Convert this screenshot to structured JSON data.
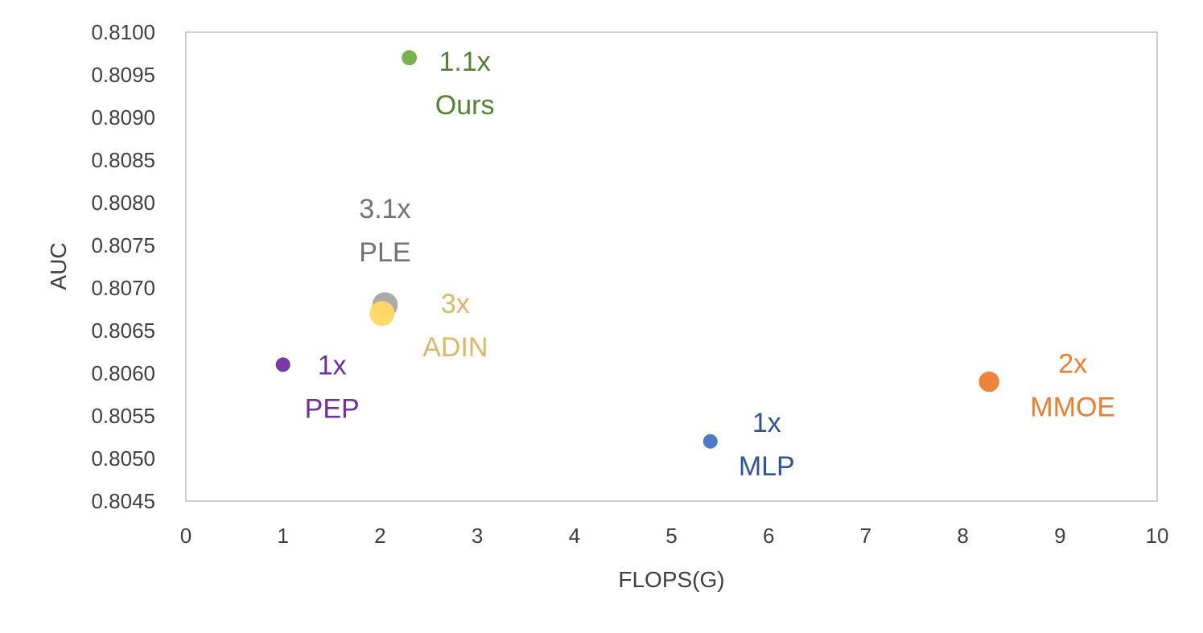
{
  "chart_data": {
    "type": "scatter",
    "title": "",
    "xlabel": "FLOPS(G)",
    "ylabel": "AUC",
    "xlim": [
      0,
      10
    ],
    "ylim": [
      0.8045,
      0.81
    ],
    "xticks": [
      "0",
      "1",
      "2",
      "3",
      "4",
      "5",
      "6",
      "7",
      "8",
      "9",
      "10"
    ],
    "yticks": [
      "0.8045",
      "0.8050",
      "0.8055",
      "0.8060",
      "0.8065",
      "0.8070",
      "0.8075",
      "0.8080",
      "0.8085",
      "0.8090",
      "0.8095",
      "0.8100"
    ],
    "grid": false,
    "points": [
      {
        "name": "PLE",
        "multiplier": "3.1x",
        "x": 2.05,
        "y": 0.8068,
        "size": 3.1,
        "color": "#a5a5a5",
        "label_color": "#767171"
      },
      {
        "name": "ADIN",
        "multiplier": "3x",
        "x": 2.02,
        "y": 0.8067,
        "size": 3.0,
        "color": "#ffd966",
        "label_color": "#dbb86a"
      },
      {
        "name": "Ours",
        "multiplier": "1.1x",
        "x": 2.3,
        "y": 0.8097,
        "size": 1.1,
        "color": "#70ad47",
        "label_color": "#548235"
      },
      {
        "name": "PEP",
        "multiplier": "1x",
        "x": 1.0,
        "y": 0.8061,
        "size": 1.0,
        "color": "#7030a0",
        "label_color": "#7030a0"
      },
      {
        "name": "MLP",
        "multiplier": "1x",
        "x": 5.4,
        "y": 0.8052,
        "size": 1.0,
        "color": "#4472c4",
        "label_color": "#2f5597"
      },
      {
        "name": "MMOE",
        "multiplier": "2x",
        "x": 8.27,
        "y": 0.8059,
        "size": 2.0,
        "color": "#ed7d31",
        "label_color": "#ed7d31"
      }
    ]
  }
}
